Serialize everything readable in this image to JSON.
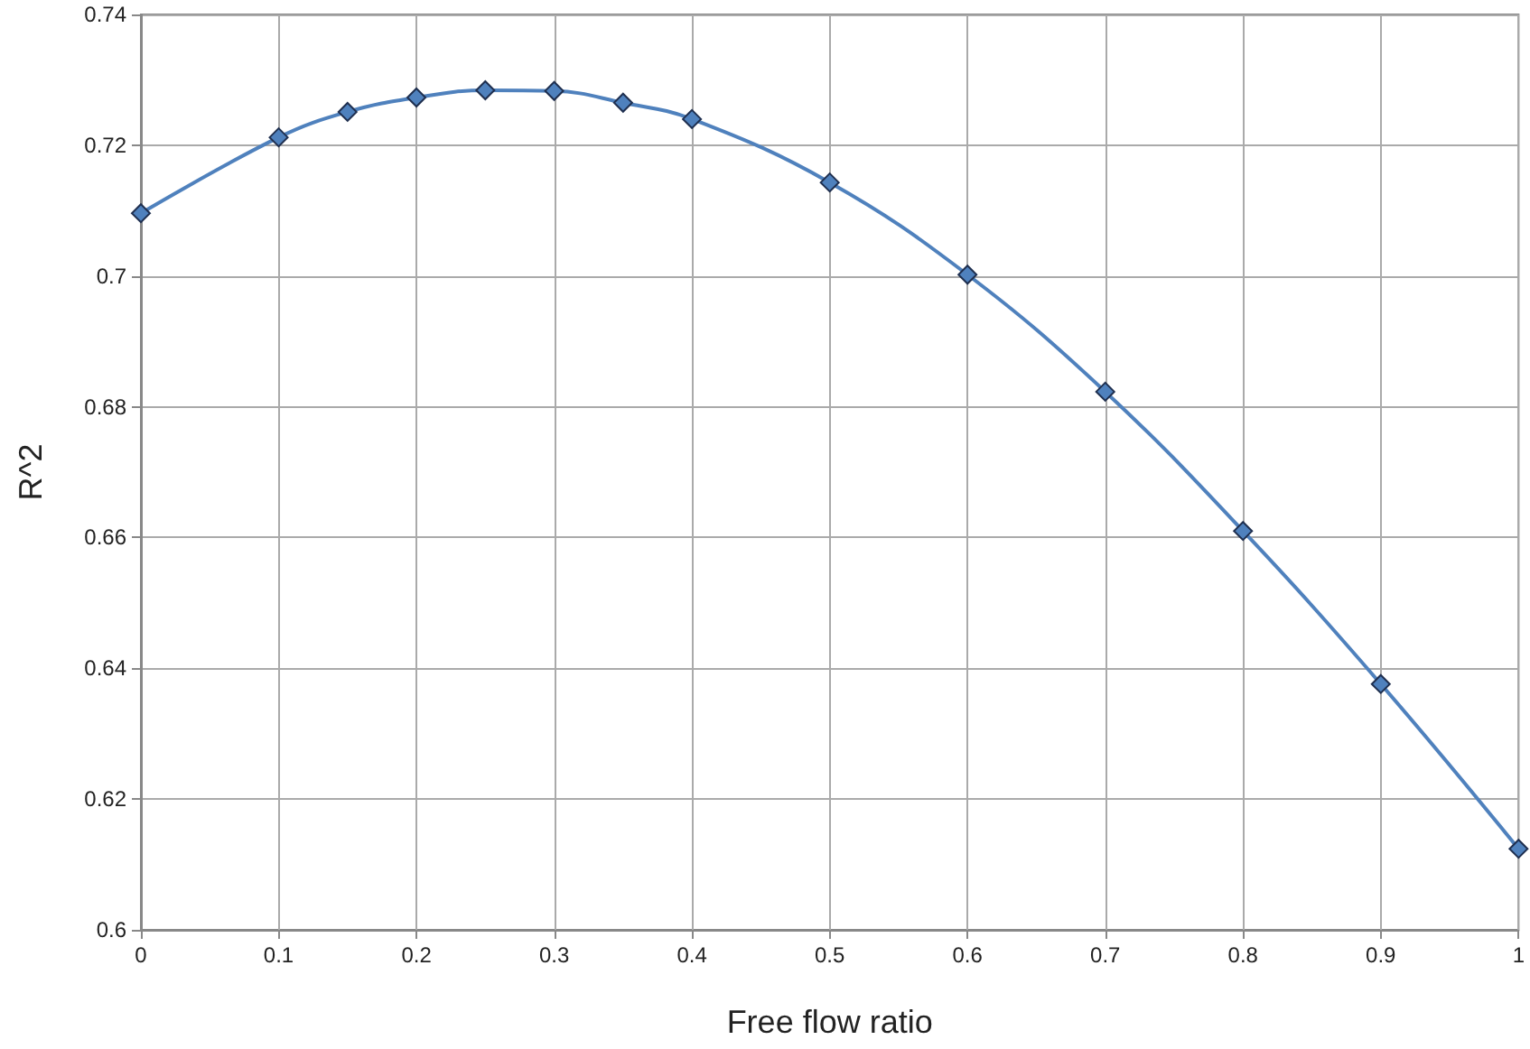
{
  "chart_data": {
    "type": "line",
    "xlabel": "Free flow ratio",
    "ylabel": "R^2",
    "x": [
      0,
      0.1,
      0.15,
      0.2,
      0.25,
      0.3,
      0.35,
      0.4,
      0.5,
      0.6,
      0.7,
      0.8,
      0.9,
      1
    ],
    "series": [
      {
        "color": "#4f81bd",
        "values": [
          0.7096,
          0.7212,
          0.7251,
          0.7273,
          0.7284,
          0.7283,
          0.7265,
          0.724,
          0.7143,
          0.7002,
          0.6823,
          0.661,
          0.6376,
          0.6124
        ]
      }
    ],
    "xlim": [
      0,
      1
    ],
    "xticks": [
      0,
      0.1,
      0.2,
      0.3,
      0.4,
      0.5,
      0.6,
      0.7,
      0.8,
      0.9,
      1
    ],
    "ylim": [
      0.6,
      0.74
    ],
    "yticks": [
      0.6,
      0.62,
      0.64,
      0.66,
      0.68,
      0.7,
      0.72,
      0.74
    ],
    "grid": true,
    "marker": "diamond",
    "line_style": "solid"
  }
}
